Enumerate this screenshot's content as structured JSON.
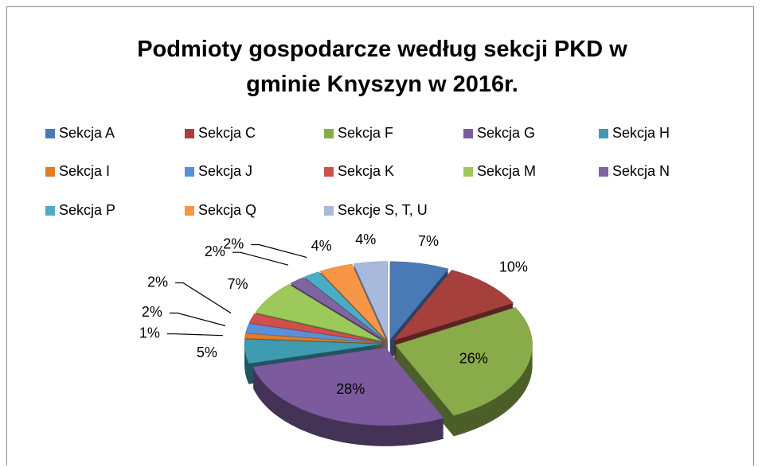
{
  "chart_data": {
    "type": "pie",
    "title": "Podmioty gospodarcze według sekcji PKD w gminie Knyszyn w 2016r.",
    "categories": [
      "Sekcja A",
      "Sekcja C",
      "Sekcja F",
      "Sekcja G",
      "Sekcja H",
      "Sekcja I",
      "Sekcja J",
      "Sekcja K",
      "Sekcja M",
      "Sekcja N",
      "Sekcja P",
      "Sekcja Q",
      "Sekcje S, T, U"
    ],
    "values": [
      7,
      10,
      26,
      28,
      5,
      1,
      2,
      2,
      7,
      2,
      2,
      4,
      4
    ],
    "value_labels": [
      "7%",
      "10%",
      "26%",
      "28%",
      "5%",
      "1%",
      "2%",
      "2%",
      "7%",
      "2%",
      "2%",
      "4%",
      "4%"
    ],
    "colors": [
      "#4a7ab5",
      "#a5403d",
      "#8aab4a",
      "#7b5a9e",
      "#3e9bb0",
      "#e07b27",
      "#5b8fd6",
      "#d0504d",
      "#9cc95a",
      "#8064a2",
      "#4bacc6",
      "#f79646",
      "#a8b9dc"
    ],
    "legend": "top"
  }
}
